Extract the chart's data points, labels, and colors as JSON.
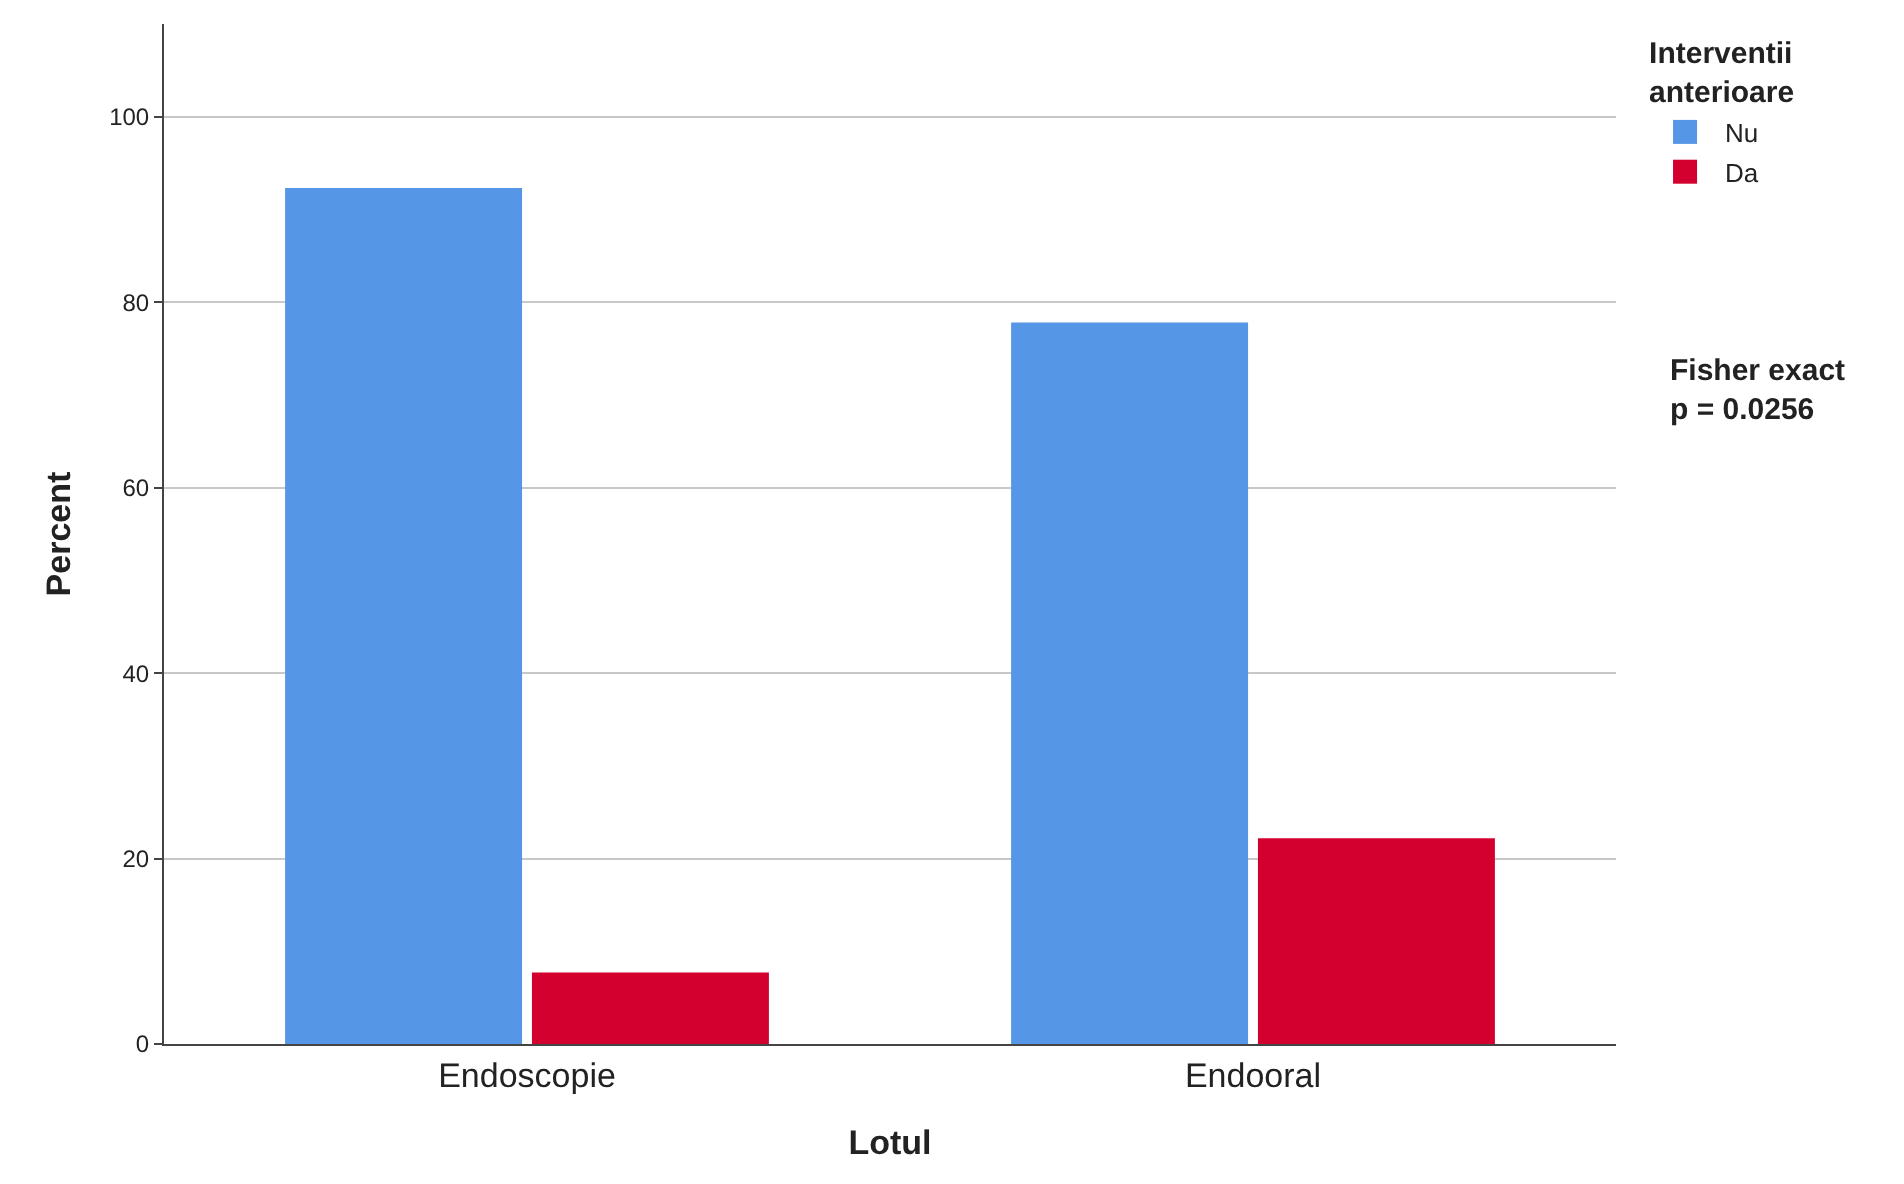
{
  "chart_data": {
    "type": "bar",
    "xlabel": "Lotul",
    "ylabel": "Percent",
    "legend_title": "Interventii\nanterioare",
    "categories": [
      "Endoscopie",
      "Endooral"
    ],
    "series": [
      {
        "name": "Nu",
        "color": "#5596e6",
        "values": [
          92.3,
          77.8
        ]
      },
      {
        "name": "Da",
        "color": "#d3002f",
        "values": [
          7.7,
          22.2
        ]
      }
    ],
    "ylim": [
      0,
      110
    ],
    "yticks": [
      0,
      20,
      40,
      60,
      80,
      100
    ],
    "grid": "y",
    "legend": "top right",
    "annotations": [
      "Fisher exact\np = 0.0256"
    ]
  }
}
